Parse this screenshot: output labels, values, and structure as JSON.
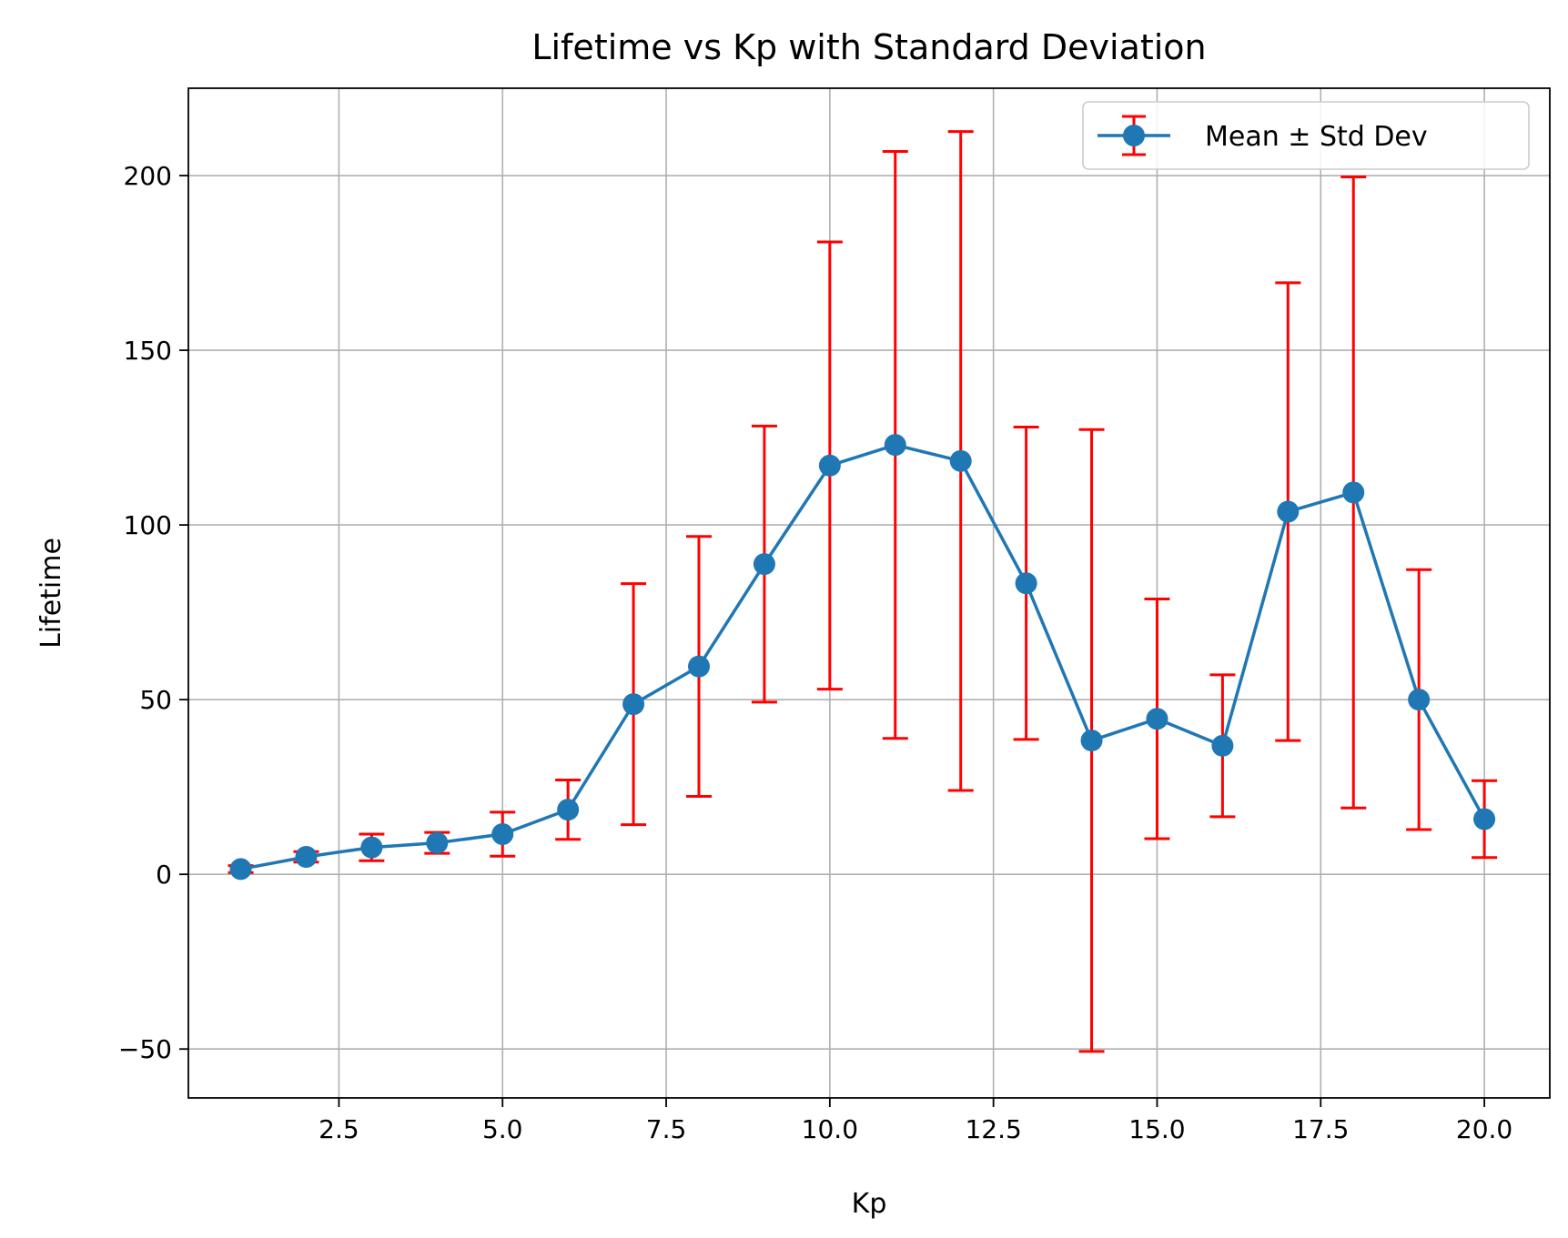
{
  "chart_data": {
    "type": "line",
    "title": "Lifetime vs Kp with Standard Deviation",
    "xlabel": "Kp",
    "ylabel": "Lifetime",
    "xlim": [
      0.2,
      21.0
    ],
    "ylim": [
      -64,
      225
    ],
    "xticks": [
      2.5,
      5.0,
      7.5,
      10.0,
      12.5,
      15.0,
      17.5,
      20.0
    ],
    "xtick_labels": [
      "2.5",
      "5.0",
      "7.5",
      "10.0",
      "12.5",
      "15.0",
      "17.5",
      "20.0"
    ],
    "yticks": [
      -50,
      0,
      50,
      100,
      150,
      200
    ],
    "ytick_labels": [
      "−50",
      "0",
      "50",
      "100",
      "150",
      "200"
    ],
    "grid": true,
    "legend_position": "top-right",
    "series": [
      {
        "name": "Mean ± Std Dev",
        "color": "#1f77b4",
        "errorbar_color": "#ff0000",
        "x": [
          1,
          2,
          3,
          4,
          5,
          6,
          7,
          8,
          9,
          10,
          11,
          12,
          13,
          14,
          15,
          16,
          17,
          18,
          19,
          20
        ],
        "y": [
          1.5,
          5,
          7.7,
          9,
          11.5,
          18.5,
          48.7,
          59.5,
          88.8,
          117,
          122.9,
          118.3,
          83.3,
          38.3,
          44.5,
          36.8,
          103.8,
          109.3,
          50,
          15.8
        ],
        "std": [
          1,
          1.5,
          3.8,
          3,
          6.3,
          8.5,
          34.5,
          37.2,
          39.5,
          64,
          84,
          94.3,
          44.7,
          89,
          34.3,
          20.3,
          65.5,
          90.3,
          37.2,
          11
        ]
      }
    ]
  }
}
